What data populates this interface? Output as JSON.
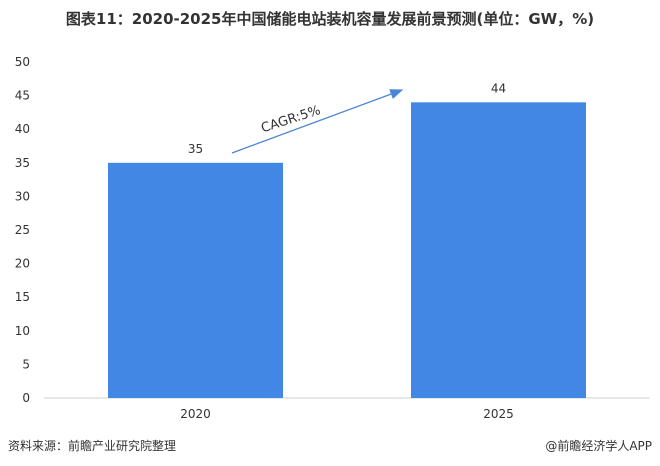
{
  "chart_data": {
    "type": "bar",
    "title": "图表11：2020-2025年中国储能电站装机容量发展前景预测(单位：GW，%)",
    "categories": [
      "2020",
      "2025"
    ],
    "values": [
      35,
      44
    ],
    "ylim": [
      0,
      50
    ],
    "yticks": [
      0,
      5,
      10,
      15,
      20,
      25,
      30,
      35,
      40,
      45,
      50
    ],
    "bar_color": "#4287e4",
    "grid": false,
    "annotation": "CAGR:5%"
  },
  "footer": {
    "source": "资料来源：前瞻产业研究院整理",
    "brand": "@前瞻经济学人APP"
  }
}
